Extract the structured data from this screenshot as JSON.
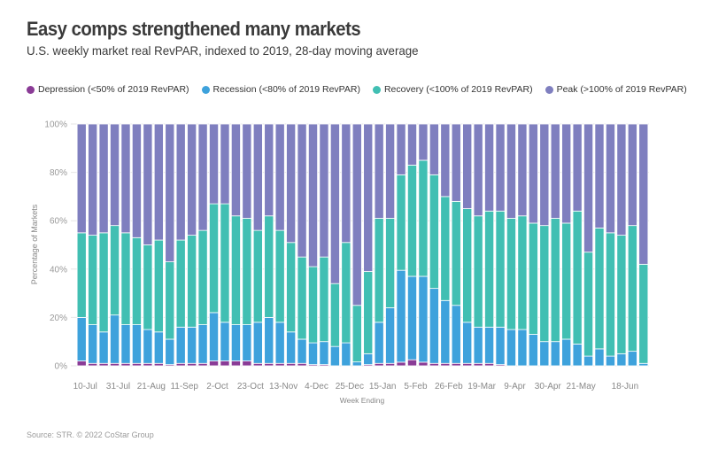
{
  "chart_data": {
    "type": "bar",
    "stacked": true,
    "title": "Easy comps strengthened many markets",
    "subtitle": "U.S. weekly market real RevPAR, indexed to 2019, 28-day moving average",
    "xlabel": "Week Ending",
    "ylabel": "Percentage of Markets",
    "ylim": [
      0,
      100
    ],
    "yticks": [
      "0%",
      "20%",
      "40%",
      "60%",
      "80%",
      "100%"
    ],
    "grid": true,
    "legend_position": "top-left",
    "xtick_labels": [
      {
        "index": 0,
        "label": "10-Jul"
      },
      {
        "index": 3,
        "label": "31-Jul"
      },
      {
        "index": 6,
        "label": "21-Aug"
      },
      {
        "index": 9,
        "label": "11-Sep"
      },
      {
        "index": 12,
        "label": "2-Oct"
      },
      {
        "index": 15,
        "label": "23-Oct"
      },
      {
        "index": 18,
        "label": "13-Nov"
      },
      {
        "index": 21,
        "label": "4-Dec"
      },
      {
        "index": 24,
        "label": "25-Dec"
      },
      {
        "index": 27,
        "label": "15-Jan"
      },
      {
        "index": 30,
        "label": "5-Feb"
      },
      {
        "index": 33,
        "label": "26-Feb"
      },
      {
        "index": 36,
        "label": "19-Mar"
      },
      {
        "index": 39,
        "label": "9-Apr"
      },
      {
        "index": 42,
        "label": "30-Apr"
      },
      {
        "index": 45,
        "label": "21-May"
      },
      {
        "index": 49,
        "label": "18-Jun"
      }
    ],
    "series": [
      {
        "name": "Depression (<50% of 2019 RevPAR)",
        "color": "#8a3b96",
        "values": [
          2,
          1,
          1,
          1,
          1,
          1,
          1,
          1,
          0.5,
          1,
          1,
          1,
          2,
          2,
          2,
          2,
          1,
          1,
          1,
          1,
          1,
          0.5,
          0.5,
          0,
          0,
          0,
          0.5,
          1,
          1,
          1.5,
          2.5,
          1.5,
          1,
          1,
          1,
          1,
          1,
          1,
          0.5,
          0,
          0,
          0,
          0,
          0,
          0,
          0,
          0,
          0,
          0,
          0,
          0,
          0
        ]
      },
      {
        "name": "Recession (<80% of 2019 RevPAR)",
        "color": "#3ea2dc",
        "values": [
          18,
          16,
          13,
          20,
          16,
          16,
          14,
          13,
          10.5,
          15,
          15,
          16,
          20,
          16,
          15,
          15,
          17,
          19,
          17,
          13,
          10,
          9,
          9.5,
          8,
          9.5,
          1.6,
          4.5,
          17,
          23,
          38,
          34.5,
          35.5,
          31,
          26,
          24,
          17,
          15,
          15,
          15.5,
          15,
          15,
          13,
          10,
          10,
          11,
          9,
          4,
          7,
          4,
          5,
          6,
          1
        ]
      },
      {
        "name": "Recovery (<100% of 2019 RevPAR)",
        "color": "#41bfb3",
        "values": [
          35,
          37,
          41,
          37,
          38,
          36,
          35,
          38,
          32,
          36,
          38,
          39,
          45,
          49,
          45,
          44,
          38,
          42,
          38,
          37,
          34,
          31.5,
          35,
          26,
          41.5,
          23.4,
          34,
          43,
          37,
          39.5,
          46,
          48,
          47,
          43,
          43,
          47,
          46,
          48,
          48,
          46,
          47,
          46,
          48,
          51,
          48,
          55,
          43,
          50,
          51,
          49,
          52,
          41
        ]
      },
      {
        "name": "Peak (>100% of 2019 RevPAR)",
        "color": "#7f7fbf",
        "values": [
          45,
          46,
          45,
          42,
          45,
          47,
          50,
          48,
          57,
          48,
          46,
          44,
          33,
          33,
          38,
          39,
          44,
          38,
          44,
          49,
          55,
          59,
          55,
          66,
          49,
          75,
          61,
          39,
          39,
          21,
          17,
          15,
          21,
          30,
          32,
          35,
          38,
          36,
          36,
          39,
          38,
          41,
          42,
          39,
          41,
          36,
          53,
          43,
          45,
          46,
          42,
          58
        ]
      }
    ]
  },
  "source": "Source: STR. © 2022 CoStar Group"
}
